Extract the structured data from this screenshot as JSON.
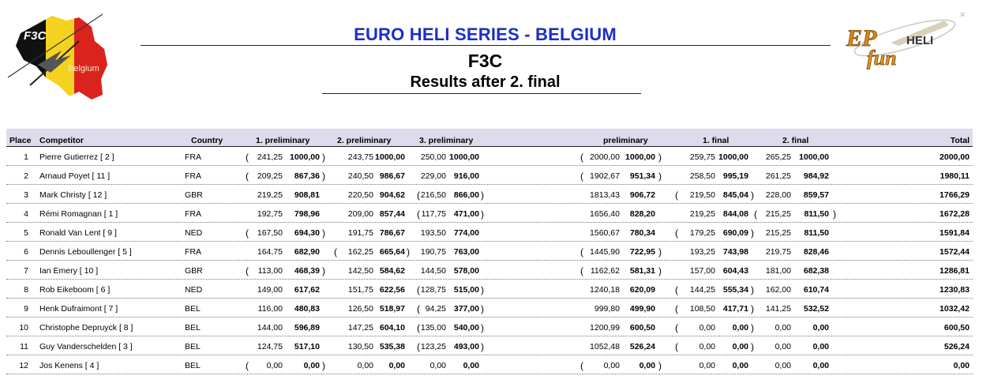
{
  "header": {
    "series_title": "EURO HELI SERIES - BELGIUM",
    "class_title": "F3C",
    "results_title": "Results after 2. final"
  },
  "logos": {
    "left_text_top": "F3C",
    "left_text_bottom": "Belgium",
    "right_text_top": "EP",
    "right_text_mid": "HELI",
    "right_text_bottom": "fun"
  },
  "columns": {
    "place": "Place",
    "competitor": "Competitor",
    "country": "Country",
    "prelim1": "1. preliminary",
    "prelim2": "2. preliminary",
    "prelim3": "3. preliminary",
    "preliminary": "preliminary",
    "final1": "1. final",
    "final2": "2. final",
    "total": "Total"
  },
  "rows": [
    {
      "place": "1",
      "competitor": "Pierre Gutierrez  [ 2 ]",
      "country": "FRA",
      "p1": {
        "raw": "241,25",
        "norm": "1000,00",
        "drop": true
      },
      "p2": {
        "raw": "243,75",
        "norm": "1000,00",
        "drop": false
      },
      "p3": {
        "raw": "250,00",
        "norm": "1000,00",
        "drop": false
      },
      "pre": {
        "raw": "2000,00",
        "norm": "1000,00",
        "drop": true
      },
      "f1": {
        "raw": "259,75",
        "norm": "1000,00",
        "drop": false
      },
      "f2": {
        "raw": "265,25",
        "norm": "1000,00",
        "drop": false
      },
      "total": "2000,00"
    },
    {
      "place": "2",
      "competitor": "Arnaud Poyet  [ 11 ]",
      "country": "FRA",
      "p1": {
        "raw": "209,25",
        "norm": "867,36",
        "drop": true
      },
      "p2": {
        "raw": "240,50",
        "norm": "986,67",
        "drop": false
      },
      "p3": {
        "raw": "229,00",
        "norm": "916,00",
        "drop": false
      },
      "pre": {
        "raw": "1902,67",
        "norm": "951,34",
        "drop": true
      },
      "f1": {
        "raw": "258,50",
        "norm": "995,19",
        "drop": false
      },
      "f2": {
        "raw": "261,25",
        "norm": "984,92",
        "drop": false
      },
      "total": "1980,11"
    },
    {
      "place": "3",
      "competitor": "Mark Christy  [ 12 ]",
      "country": "GBR",
      "p1": {
        "raw": "219,25",
        "norm": "908,81",
        "drop": false
      },
      "p2": {
        "raw": "220,50",
        "norm": "904,62",
        "drop": false
      },
      "p3": {
        "raw": "216,50",
        "norm": "866,00",
        "drop": true
      },
      "pre": {
        "raw": "1813,43",
        "norm": "906,72",
        "drop": false
      },
      "f1": {
        "raw": "219,50",
        "norm": "845,04",
        "drop": true
      },
      "f2": {
        "raw": "228,00",
        "norm": "859,57",
        "drop": false
      },
      "total": "1766,29"
    },
    {
      "place": "4",
      "competitor": "Rémi Romagnan  [ 1 ]",
      "country": "FRA",
      "p1": {
        "raw": "192,75",
        "norm": "798,96",
        "drop": false
      },
      "p2": {
        "raw": "209,00",
        "norm": "857,44",
        "drop": false
      },
      "p3": {
        "raw": "117,75",
        "norm": "471,00",
        "drop": true
      },
      "pre": {
        "raw": "1656,40",
        "norm": "828,20",
        "drop": false
      },
      "f1": {
        "raw": "219,25",
        "norm": "844,08",
        "drop": false
      },
      "f2": {
        "raw": "215,25",
        "norm": "811,50",
        "drop": true
      },
      "total": "1672,28"
    },
    {
      "place": "5",
      "competitor": "Ronald Van Lent  [ 9 ]",
      "country": "NED",
      "p1": {
        "raw": "167,50",
        "norm": "694,30",
        "drop": true
      },
      "p2": {
        "raw": "191,75",
        "norm": "786,67",
        "drop": false
      },
      "p3": {
        "raw": "193,50",
        "norm": "774,00",
        "drop": false
      },
      "pre": {
        "raw": "1560,67",
        "norm": "780,34",
        "drop": false
      },
      "f1": {
        "raw": "179,25",
        "norm": "690,09",
        "drop": true
      },
      "f2": {
        "raw": "215,25",
        "norm": "811,50",
        "drop": false
      },
      "total": "1591,84"
    },
    {
      "place": "6",
      "competitor": "Dennis Leboullenger  [ 5 ]",
      "country": "FRA",
      "p1": {
        "raw": "164,75",
        "norm": "682,90",
        "drop": false
      },
      "p2": {
        "raw": "162,25",
        "norm": "665,64",
        "drop": true
      },
      "p3": {
        "raw": "190,75",
        "norm": "763,00",
        "drop": false
      },
      "pre": {
        "raw": "1445,90",
        "norm": "722,95",
        "drop": true
      },
      "f1": {
        "raw": "193,25",
        "norm": "743,98",
        "drop": false
      },
      "f2": {
        "raw": "219,75",
        "norm": "828,46",
        "drop": false
      },
      "total": "1572,44"
    },
    {
      "place": "7",
      "competitor": "Ian Emery  [ 10 ]",
      "country": "GBR",
      "p1": {
        "raw": "113,00",
        "norm": "468,39",
        "drop": true
      },
      "p2": {
        "raw": "142,50",
        "norm": "584,62",
        "drop": false
      },
      "p3": {
        "raw": "144,50",
        "norm": "578,00",
        "drop": false
      },
      "pre": {
        "raw": "1162,62",
        "norm": "581,31",
        "drop": true
      },
      "f1": {
        "raw": "157,00",
        "norm": "604,43",
        "drop": false
      },
      "f2": {
        "raw": "181,00",
        "norm": "682,38",
        "drop": false
      },
      "total": "1286,81"
    },
    {
      "place": "8",
      "competitor": "Rob Eikeboom  [ 6 ]",
      "country": "NED",
      "p1": {
        "raw": "149,00",
        "norm": "617,62",
        "drop": false
      },
      "p2": {
        "raw": "151,75",
        "norm": "622,56",
        "drop": false
      },
      "p3": {
        "raw": "128,75",
        "norm": "515,00",
        "drop": true
      },
      "pre": {
        "raw": "1240,18",
        "norm": "620,09",
        "drop": false
      },
      "f1": {
        "raw": "144,25",
        "norm": "555,34",
        "drop": true
      },
      "f2": {
        "raw": "162,00",
        "norm": "610,74",
        "drop": false
      },
      "total": "1230,83"
    },
    {
      "place": "9",
      "competitor": "Henk Dufraimont  [ 7 ]",
      "country": "BEL",
      "p1": {
        "raw": "116,00",
        "norm": "480,83",
        "drop": false
      },
      "p2": {
        "raw": "126,50",
        "norm": "518,97",
        "drop": false
      },
      "p3": {
        "raw": "94,25",
        "norm": "377,00",
        "drop": true
      },
      "pre": {
        "raw": "999,80",
        "norm": "499,90",
        "drop": false
      },
      "f1": {
        "raw": "108,50",
        "norm": "417,71",
        "drop": true
      },
      "f2": {
        "raw": "141,25",
        "norm": "532,52",
        "drop": false
      },
      "total": "1032,42"
    },
    {
      "place": "10",
      "competitor": "Christophe Depruyck  [ 8 ]",
      "country": "BEL",
      "p1": {
        "raw": "144,00",
        "norm": "596,89",
        "drop": false
      },
      "p2": {
        "raw": "147,25",
        "norm": "604,10",
        "drop": false
      },
      "p3": {
        "raw": "135,00",
        "norm": "540,00",
        "drop": true
      },
      "pre": {
        "raw": "1200,99",
        "norm": "600,50",
        "drop": false
      },
      "f1": {
        "raw": "0,00",
        "norm": "0,00",
        "drop": true
      },
      "f2": {
        "raw": "0,00",
        "norm": "0,00",
        "drop": false
      },
      "total": "600,50"
    },
    {
      "place": "11",
      "competitor": "Guy Vanderschelden  [ 3 ]",
      "country": "BEL",
      "p1": {
        "raw": "124,75",
        "norm": "517,10",
        "drop": false
      },
      "p2": {
        "raw": "130,50",
        "norm": "535,38",
        "drop": false
      },
      "p3": {
        "raw": "123,25",
        "norm": "493,00",
        "drop": true
      },
      "pre": {
        "raw": "1052,48",
        "norm": "526,24",
        "drop": false
      },
      "f1": {
        "raw": "0,00",
        "norm": "0,00",
        "drop": true
      },
      "f2": {
        "raw": "0,00",
        "norm": "0,00",
        "drop": false
      },
      "total": "526,24"
    },
    {
      "place": "12",
      "competitor": "Jos Kenens  [ 4 ]",
      "country": "BEL",
      "p1": {
        "raw": "0,00",
        "norm": "0,00",
        "drop": true
      },
      "p2": {
        "raw": "0,00",
        "norm": "0,00",
        "drop": false
      },
      "p3": {
        "raw": "0,00",
        "norm": "0,00",
        "drop": false
      },
      "pre": {
        "raw": "0,00",
        "norm": "0,00",
        "drop": true
      },
      "f1": {
        "raw": "0,00",
        "norm": "0,00",
        "drop": false
      },
      "f2": {
        "raw": "0,00",
        "norm": "0,00",
        "drop": false
      },
      "total": "0,00"
    }
  ]
}
